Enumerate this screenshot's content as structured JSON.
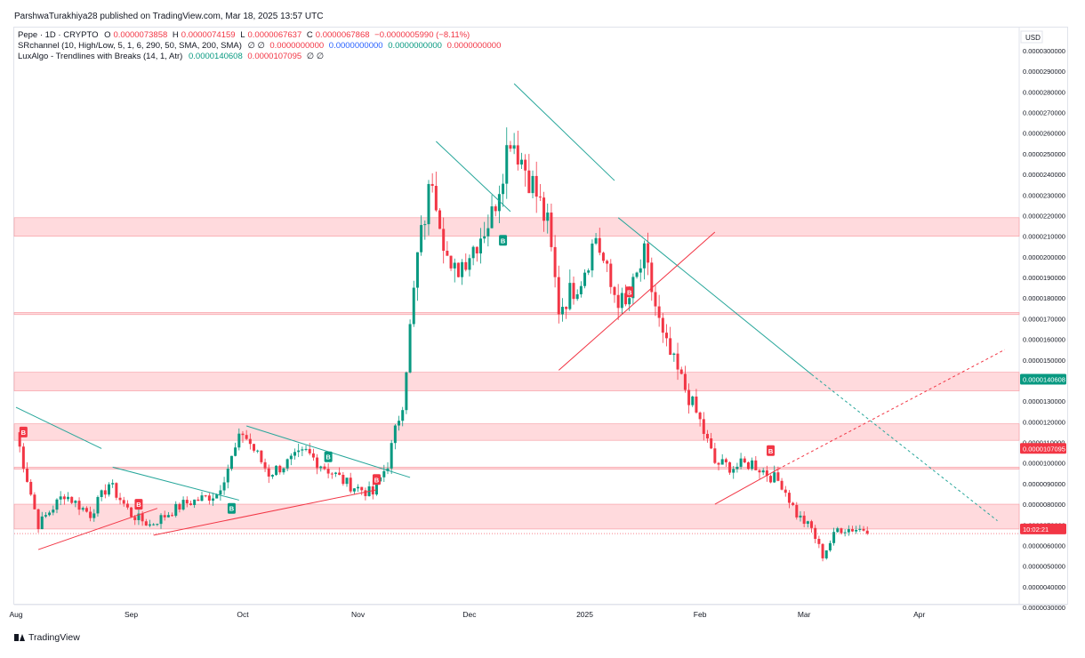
{
  "publisher_line": "ParshwaTurakhiya28 published on TradingView.com, Mar 18, 2025 13:57 UTC",
  "brand": "TradingView",
  "legend": {
    "symbol": "Pepe · 1D · CRYPTO",
    "o_label": "O",
    "o_value": "0.0000073858",
    "h_label": "H",
    "h_value": "0.0000074159",
    "l_label": "L",
    "l_value": "0.0000067637",
    "c_label": "C",
    "c_value": "0.0000067868",
    "change": "−0.0000005990 (−8.11%)",
    "ind1_name": "SRchannel (10, High/Low, 5, 1, 6, 290, 50, SMA, 200, SMA)",
    "ind1_symbols": "∅ ∅",
    "ind1_v1": "0.0000000000",
    "ind1_v2": "0.0000000000",
    "ind1_v3": "0.0000000000",
    "ind1_v4": "0.0000000000",
    "ind2_name": "LuxAlgo - Trendlines with Breaks (14, 1, Atr)",
    "ind2_v1": "0.0000140608",
    "ind2_v2": "0.0000107095",
    "ind2_symbols": "∅ ∅"
  },
  "colors": {
    "up": "#089981",
    "down": "#f23645",
    "zone_fill": "#ffcdd2",
    "zone_line": "#f7a1a8",
    "trend_down": "#26a69a",
    "trend_up": "#f23645",
    "grid": "#f0f3fa",
    "axis_text": "#131722"
  },
  "chart_data": {
    "type": "candlestick",
    "currency": "USD",
    "y_range": [
      3e-06,
      3e-05
    ],
    "y_ticks": [
      "0.0000300000",
      "0.0000290000",
      "0.0000280000",
      "0.0000270000",
      "0.0000260000",
      "0.0000250000",
      "0.0000240000",
      "0.0000230000",
      "0.0000220000",
      "0.0000210000",
      "0.0000200000",
      "0.0000190000",
      "0.0000180000",
      "0.0000170000",
      "0.0000160000",
      "0.0000150000",
      "0.0000140000",
      "0.0000130000",
      "0.0000120000",
      "0.0000110000",
      "0.0000100000",
      "0.0000090000",
      "0.0000080000",
      "0.0000070000",
      "0.0000060000",
      "0.0000050000",
      "0.0000040000",
      "0.0000030000"
    ],
    "x_ticks": [
      "Aug",
      "Sep",
      "Oct",
      "Nov",
      "Dec",
      "2025",
      "Feb",
      "Mar",
      "Apr"
    ],
    "x_tick_days": [
      0,
      31,
      61,
      92,
      122,
      153,
      184,
      212,
      243
    ],
    "last_day": 229,
    "price_labels": [
      {
        "text": "0.0000140608",
        "value": 1.40608e-05,
        "color": "#089981"
      },
      {
        "text": "0.0000107095",
        "value": 1.07095e-05,
        "color": "#f23645"
      },
      {
        "text": "10:02:21",
        "value": 6.8e-06,
        "color": "#f23645"
      }
    ],
    "sr_zones": [
      [
        2.1e-05,
        2.19e-05
      ],
      [
        1.72e-05,
        1.73e-05
      ],
      [
        1.35e-05,
        1.44e-05
      ],
      [
        1.11e-05,
        1.19e-05
      ],
      [
        9.7e-06,
        9.8e-06
      ],
      [
        6.8e-06,
        8e-06
      ]
    ],
    "anchors": [
      [
        0,
        1.15e-05
      ],
      [
        6,
        7e-06
      ],
      [
        13,
        8.5e-06
      ],
      [
        20,
        7.5e-06
      ],
      [
        25,
        9e-06
      ],
      [
        31,
        7.5e-06
      ],
      [
        36,
        7e-06
      ],
      [
        45,
        8e-06
      ],
      [
        54,
        8.5e-06
      ],
      [
        61,
        1.15e-05
      ],
      [
        68,
        9.5e-06
      ],
      [
        78,
        1.05e-05
      ],
      [
        89,
        9e-06
      ],
      [
        96,
        8.5e-06
      ],
      [
        100,
        1e-05
      ],
      [
        104,
        1.3e-05
      ],
      [
        108,
        2e-05
      ],
      [
        112,
        2.4e-05
      ],
      [
        117,
        1.9e-05
      ],
      [
        123,
        2.05e-05
      ],
      [
        128,
        2.2e-05
      ],
      [
        133,
        2.6e-05
      ],
      [
        139,
        2.35e-05
      ],
      [
        143,
        2.15e-05
      ],
      [
        146,
        1.75e-05
      ],
      [
        152,
        1.9e-05
      ],
      [
        156,
        2.1e-05
      ],
      [
        160,
        1.85e-05
      ],
      [
        164,
        1.75e-05
      ],
      [
        169,
        2e-05
      ],
      [
        174,
        1.6e-05
      ],
      [
        179,
        1.4e-05
      ],
      [
        184,
        1.2e-05
      ],
      [
        188,
        1e-05
      ],
      [
        193,
        9.8e-06
      ],
      [
        198,
        1e-05
      ],
      [
        202,
        9.5e-06
      ],
      [
        206,
        9e-06
      ],
      [
        210,
        7.5e-06
      ],
      [
        214,
        6.8e-06
      ],
      [
        217,
        5.5e-06
      ],
      [
        221,
        6.8e-06
      ],
      [
        229,
        6.8e-06
      ]
    ],
    "trendlines": [
      {
        "dir": "down",
        "p1": [
          0,
          1.27e-05
        ],
        "p2": [
          23,
          1.07e-05
        ],
        "dashed": false
      },
      {
        "dir": "down",
        "p1": [
          26,
          9.8e-06
        ],
        "p2": [
          60,
          8.2e-06
        ],
        "dashed": false
      },
      {
        "dir": "down",
        "p1": [
          62,
          1.18e-05
        ],
        "p2": [
          106,
          9.3e-06
        ],
        "dashed": false
      },
      {
        "dir": "down",
        "p1": [
          113,
          2.56e-05
        ],
        "p2": [
          133,
          2.22e-05
        ],
        "dashed": false
      },
      {
        "dir": "down",
        "p1": [
          134,
          2.84e-05
        ],
        "p2": [
          161,
          2.37e-05
        ],
        "dashed": false
      },
      {
        "dir": "down",
        "p1": [
          162,
          2.19e-05
        ],
        "p2": [
          214,
          1.43e-05
        ],
        "dashed": false
      },
      {
        "dir": "down",
        "p1": [
          214,
          1.43e-05
        ],
        "p2": [
          264,
          7.2e-06
        ],
        "dashed": true
      },
      {
        "dir": "up",
        "p1": [
          6,
          5.8e-06
        ],
        "p2": [
          38,
          7.8e-06
        ],
        "dashed": false
      },
      {
        "dir": "up",
        "p1": [
          37,
          6.5e-06
        ],
        "p2": [
          97,
          8.7e-06
        ],
        "dashed": false
      },
      {
        "dir": "up",
        "p1": [
          146,
          1.45e-05
        ],
        "p2": [
          188,
          2.12e-05
        ],
        "dashed": false
      },
      {
        "dir": "up",
        "p1": [
          188,
          8e-06
        ],
        "p2": [
          205,
          9.7e-06
        ],
        "dashed": false
      },
      {
        "dir": "up",
        "p1": [
          205,
          9.7e-06
        ],
        "p2": [
          266,
          1.55e-05
        ],
        "dashed": true
      }
    ],
    "break_markers": [
      {
        "day": 2,
        "price": 1.15e-05,
        "type": "B",
        "color": "#f23645"
      },
      {
        "day": 33,
        "price": 8e-06,
        "type": "B",
        "color": "#f23645"
      },
      {
        "day": 58,
        "price": 7.8e-06,
        "type": "B",
        "color": "#089981"
      },
      {
        "day": 84,
        "price": 1.03e-05,
        "type": "B",
        "color": "#089981"
      },
      {
        "day": 97,
        "price": 9.2e-06,
        "type": "B",
        "color": "#f23645"
      },
      {
        "day": 131,
        "price": 2.08e-05,
        "type": "B",
        "color": "#089981"
      },
      {
        "day": 165,
        "price": 1.83e-05,
        "type": "B",
        "color": "#f23645"
      },
      {
        "day": 203,
        "price": 1.06e-05,
        "type": "B",
        "color": "#f23645"
      }
    ]
  }
}
